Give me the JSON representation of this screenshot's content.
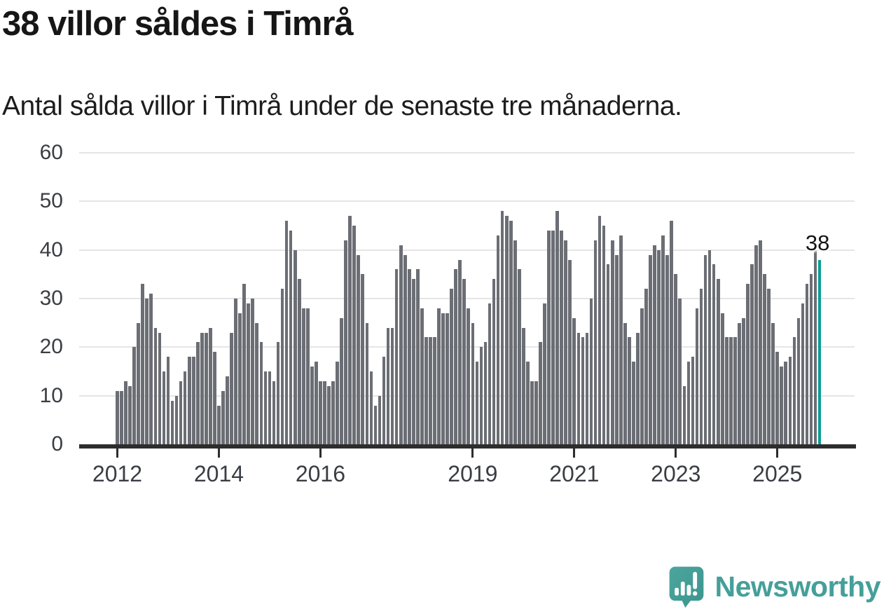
{
  "header": {
    "title": "38 villor såldes i Timrå",
    "subtitle": "Antal sålda villor i Timrå under de senaste tre månaderna."
  },
  "chart_data": {
    "type": "bar",
    "title": "38 villor såldes i Timrå",
    "subtitle": "Antal sålda villor i Timrå under de senaste tre månaderna.",
    "unit": "sålda villor (rullande 3 månader)",
    "x_start": "2012-01",
    "frequency": "monthly",
    "values": [
      11,
      11,
      13,
      12,
      20,
      25,
      33,
      30,
      31,
      24,
      23,
      15,
      18,
      9,
      10,
      13,
      15,
      18,
      18,
      21,
      23,
      23,
      24,
      19,
      8,
      11,
      14,
      23,
      30,
      27,
      33,
      29,
      30,
      25,
      21,
      15,
      15,
      13,
      21,
      32,
      46,
      44,
      40,
      34,
      28,
      28,
      16,
      17,
      13,
      13,
      12,
      13,
      17,
      26,
      42,
      47,
      45,
      39,
      35,
      25,
      15,
      8,
      10,
      18,
      24,
      24,
      36,
      41,
      39,
      36,
      34,
      36,
      28,
      22,
      22,
      22,
      28,
      27,
      27,
      32,
      36,
      38,
      34,
      28,
      25,
      17,
      20,
      21,
      29,
      34,
      43,
      48,
      47,
      46,
      42,
      36,
      24,
      17,
      13,
      13,
      21,
      29,
      44,
      44,
      48,
      44,
      42,
      38,
      26,
      23,
      22,
      23,
      30,
      42,
      47,
      45,
      37,
      42,
      39,
      43,
      25,
      22,
      17,
      23,
      28,
      32,
      39,
      41,
      40,
      43,
      39,
      46,
      35,
      30,
      12,
      17,
      18,
      28,
      32,
      39,
      40,
      37,
      34,
      27,
      22,
      22,
      22,
      25,
      26,
      33,
      37,
      41,
      42,
      35,
      32,
      25,
      19,
      16,
      17,
      18,
      22,
      26,
      29,
      33,
      35,
      40,
      38
    ],
    "highlight": {
      "index": 166,
      "value": 38,
      "label": "38"
    },
    "ylim": [
      0,
      60
    ],
    "yticks": [
      0,
      10,
      20,
      30,
      40,
      50,
      60
    ],
    "xticks": [
      {
        "label": "2012",
        "month_index": 0
      },
      {
        "label": "2014",
        "month_index": 24
      },
      {
        "label": "2016",
        "month_index": 48
      },
      {
        "label": "2019",
        "month_index": 84
      },
      {
        "label": "2021",
        "month_index": 108
      },
      {
        "label": "2023",
        "month_index": 132
      },
      {
        "label": "2025",
        "month_index": 156
      }
    ],
    "grid": "horizontal",
    "legend": "none",
    "colors": {
      "bar": "#6b6e74",
      "highlight": "#089e96",
      "gridline": "#e5e5e5",
      "axis": "#2d2d2d",
      "tick_label": "#3a3d43",
      "annotation": "#141414"
    }
  },
  "footer": {
    "logo_text": "Newsworthy",
    "logo_color": "#459f99",
    "logo_icon": "newsworthy-speech-bubble-barchart"
  }
}
